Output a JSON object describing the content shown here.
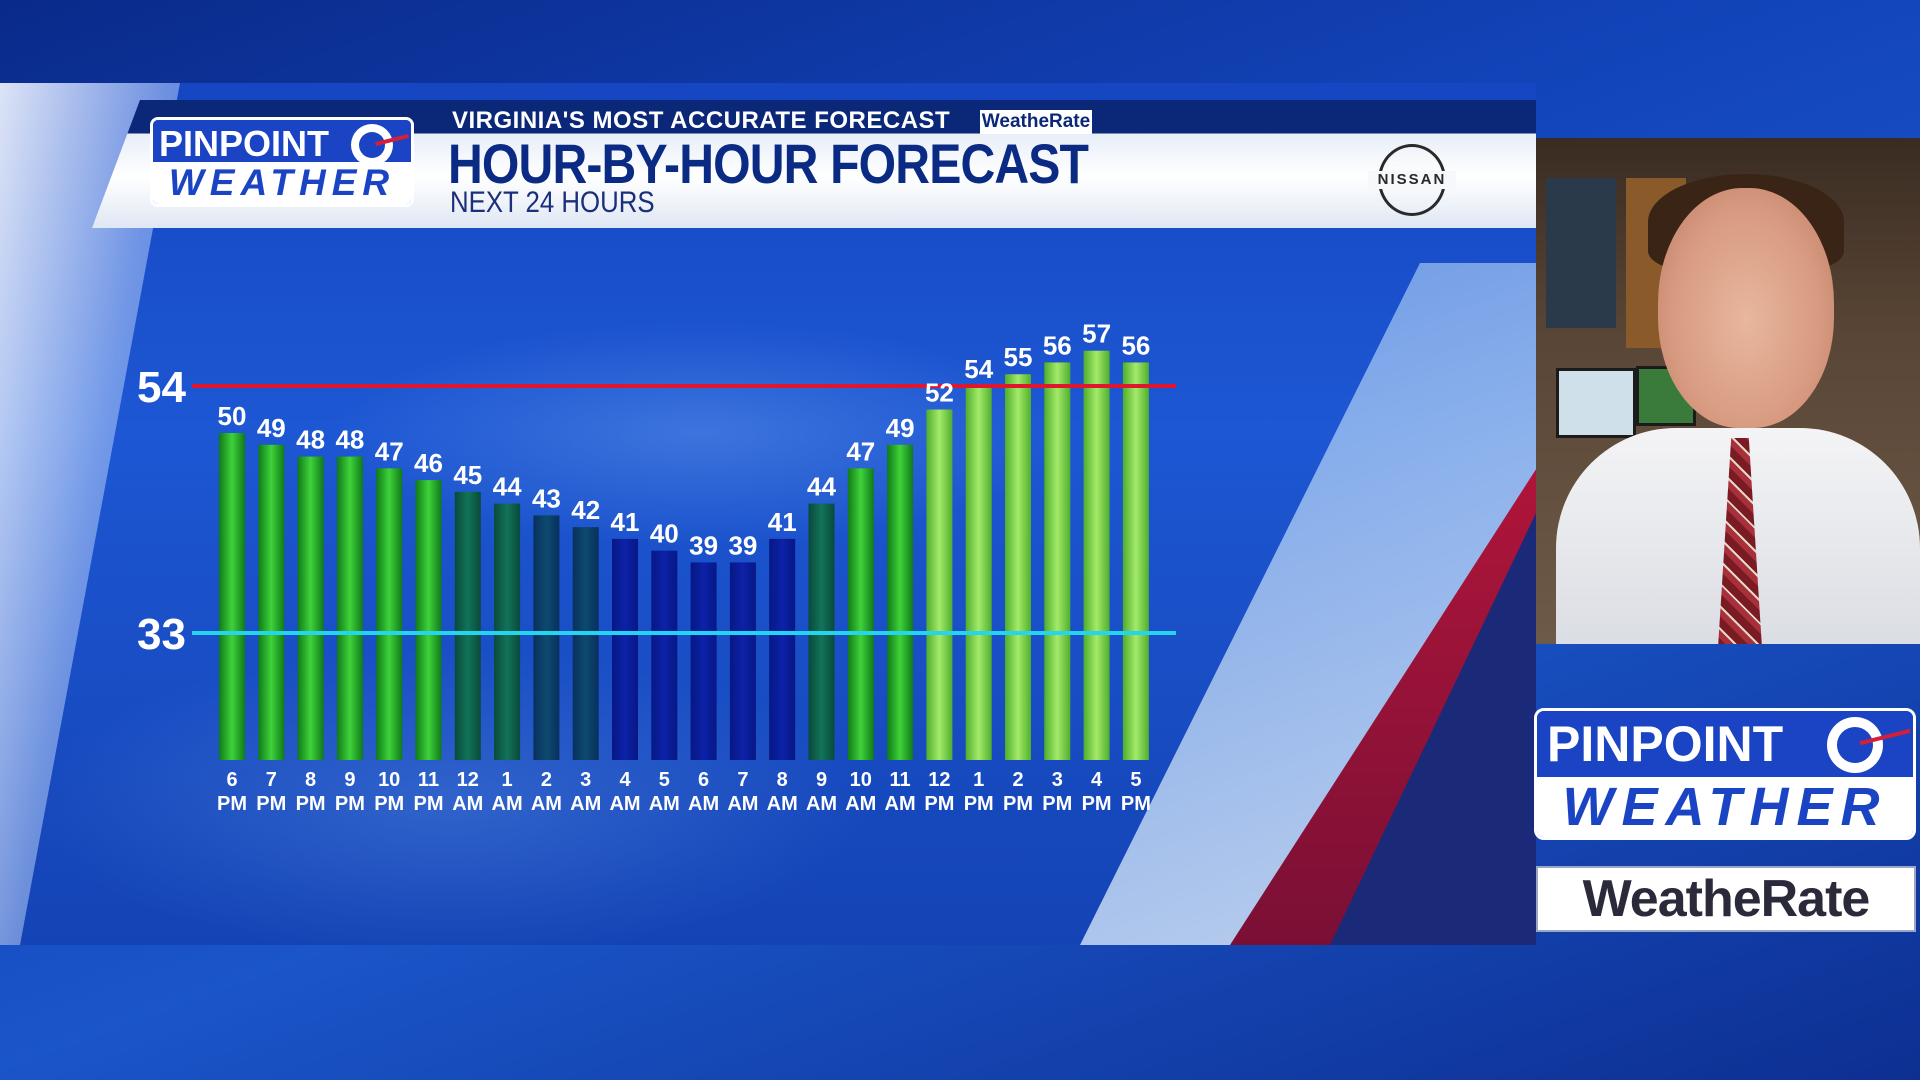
{
  "header": {
    "tagline": "VIRGINIA'S MOST ACCURATE FORECAST",
    "tag_badge": "WeatheRate",
    "title": "HOUR-BY-HOUR FORECAST",
    "subtitle": "NEXT 24 HOURS",
    "sponsor": "NISSAN"
  },
  "logo": {
    "top": "PINPOINT",
    "bottom": "WEATHER"
  },
  "side_badge": "WeatheRate",
  "colors": {
    "high_line": "#e0152e",
    "low_line": "#27d4f0",
    "bar_warm": "#2fbf2a",
    "bar_mild": "#0f6a4a",
    "bar_cool": "#0a1f9a",
    "bar_light": "#8fe05a"
  },
  "chart_data": {
    "type": "bar",
    "categories": [
      "6 PM",
      "7 PM",
      "8 PM",
      "9 PM",
      "10 PM",
      "11 PM",
      "12 AM",
      "1 AM",
      "2 AM",
      "3 AM",
      "4 AM",
      "5 AM",
      "6 AM",
      "7 AM",
      "8 AM",
      "9 AM",
      "10 AM",
      "11 AM",
      "12 PM",
      "1 PM",
      "2 PM",
      "3 PM",
      "4 PM",
      "5 PM"
    ],
    "tick_hours": [
      "6",
      "7",
      "8",
      "9",
      "10",
      "11",
      "12",
      "1",
      "2",
      "3",
      "4",
      "5",
      "6",
      "7",
      "8",
      "9",
      "10",
      "11",
      "12",
      "1",
      "2",
      "3",
      "4",
      "5"
    ],
    "tick_periods": [
      "PM",
      "PM",
      "PM",
      "PM",
      "PM",
      "PM",
      "AM",
      "AM",
      "AM",
      "AM",
      "AM",
      "AM",
      "AM",
      "AM",
      "AM",
      "AM",
      "AM",
      "AM",
      "PM",
      "PM",
      "PM",
      "PM",
      "PM",
      "PM"
    ],
    "values": [
      50,
      49,
      48,
      48,
      47,
      46,
      45,
      44,
      43,
      42,
      41,
      40,
      39,
      39,
      41,
      44,
      47,
      49,
      52,
      54,
      55,
      56,
      57,
      56
    ],
    "reference_lines": [
      {
        "label": "54",
        "value": 54
      },
      {
        "label": "33",
        "value": 33
      }
    ],
    "title": "HOUR-BY-HOUR FORECAST",
    "subtitle": "NEXT 24 HOURS",
    "xlabel": "",
    "ylabel": "",
    "grid": false
  }
}
